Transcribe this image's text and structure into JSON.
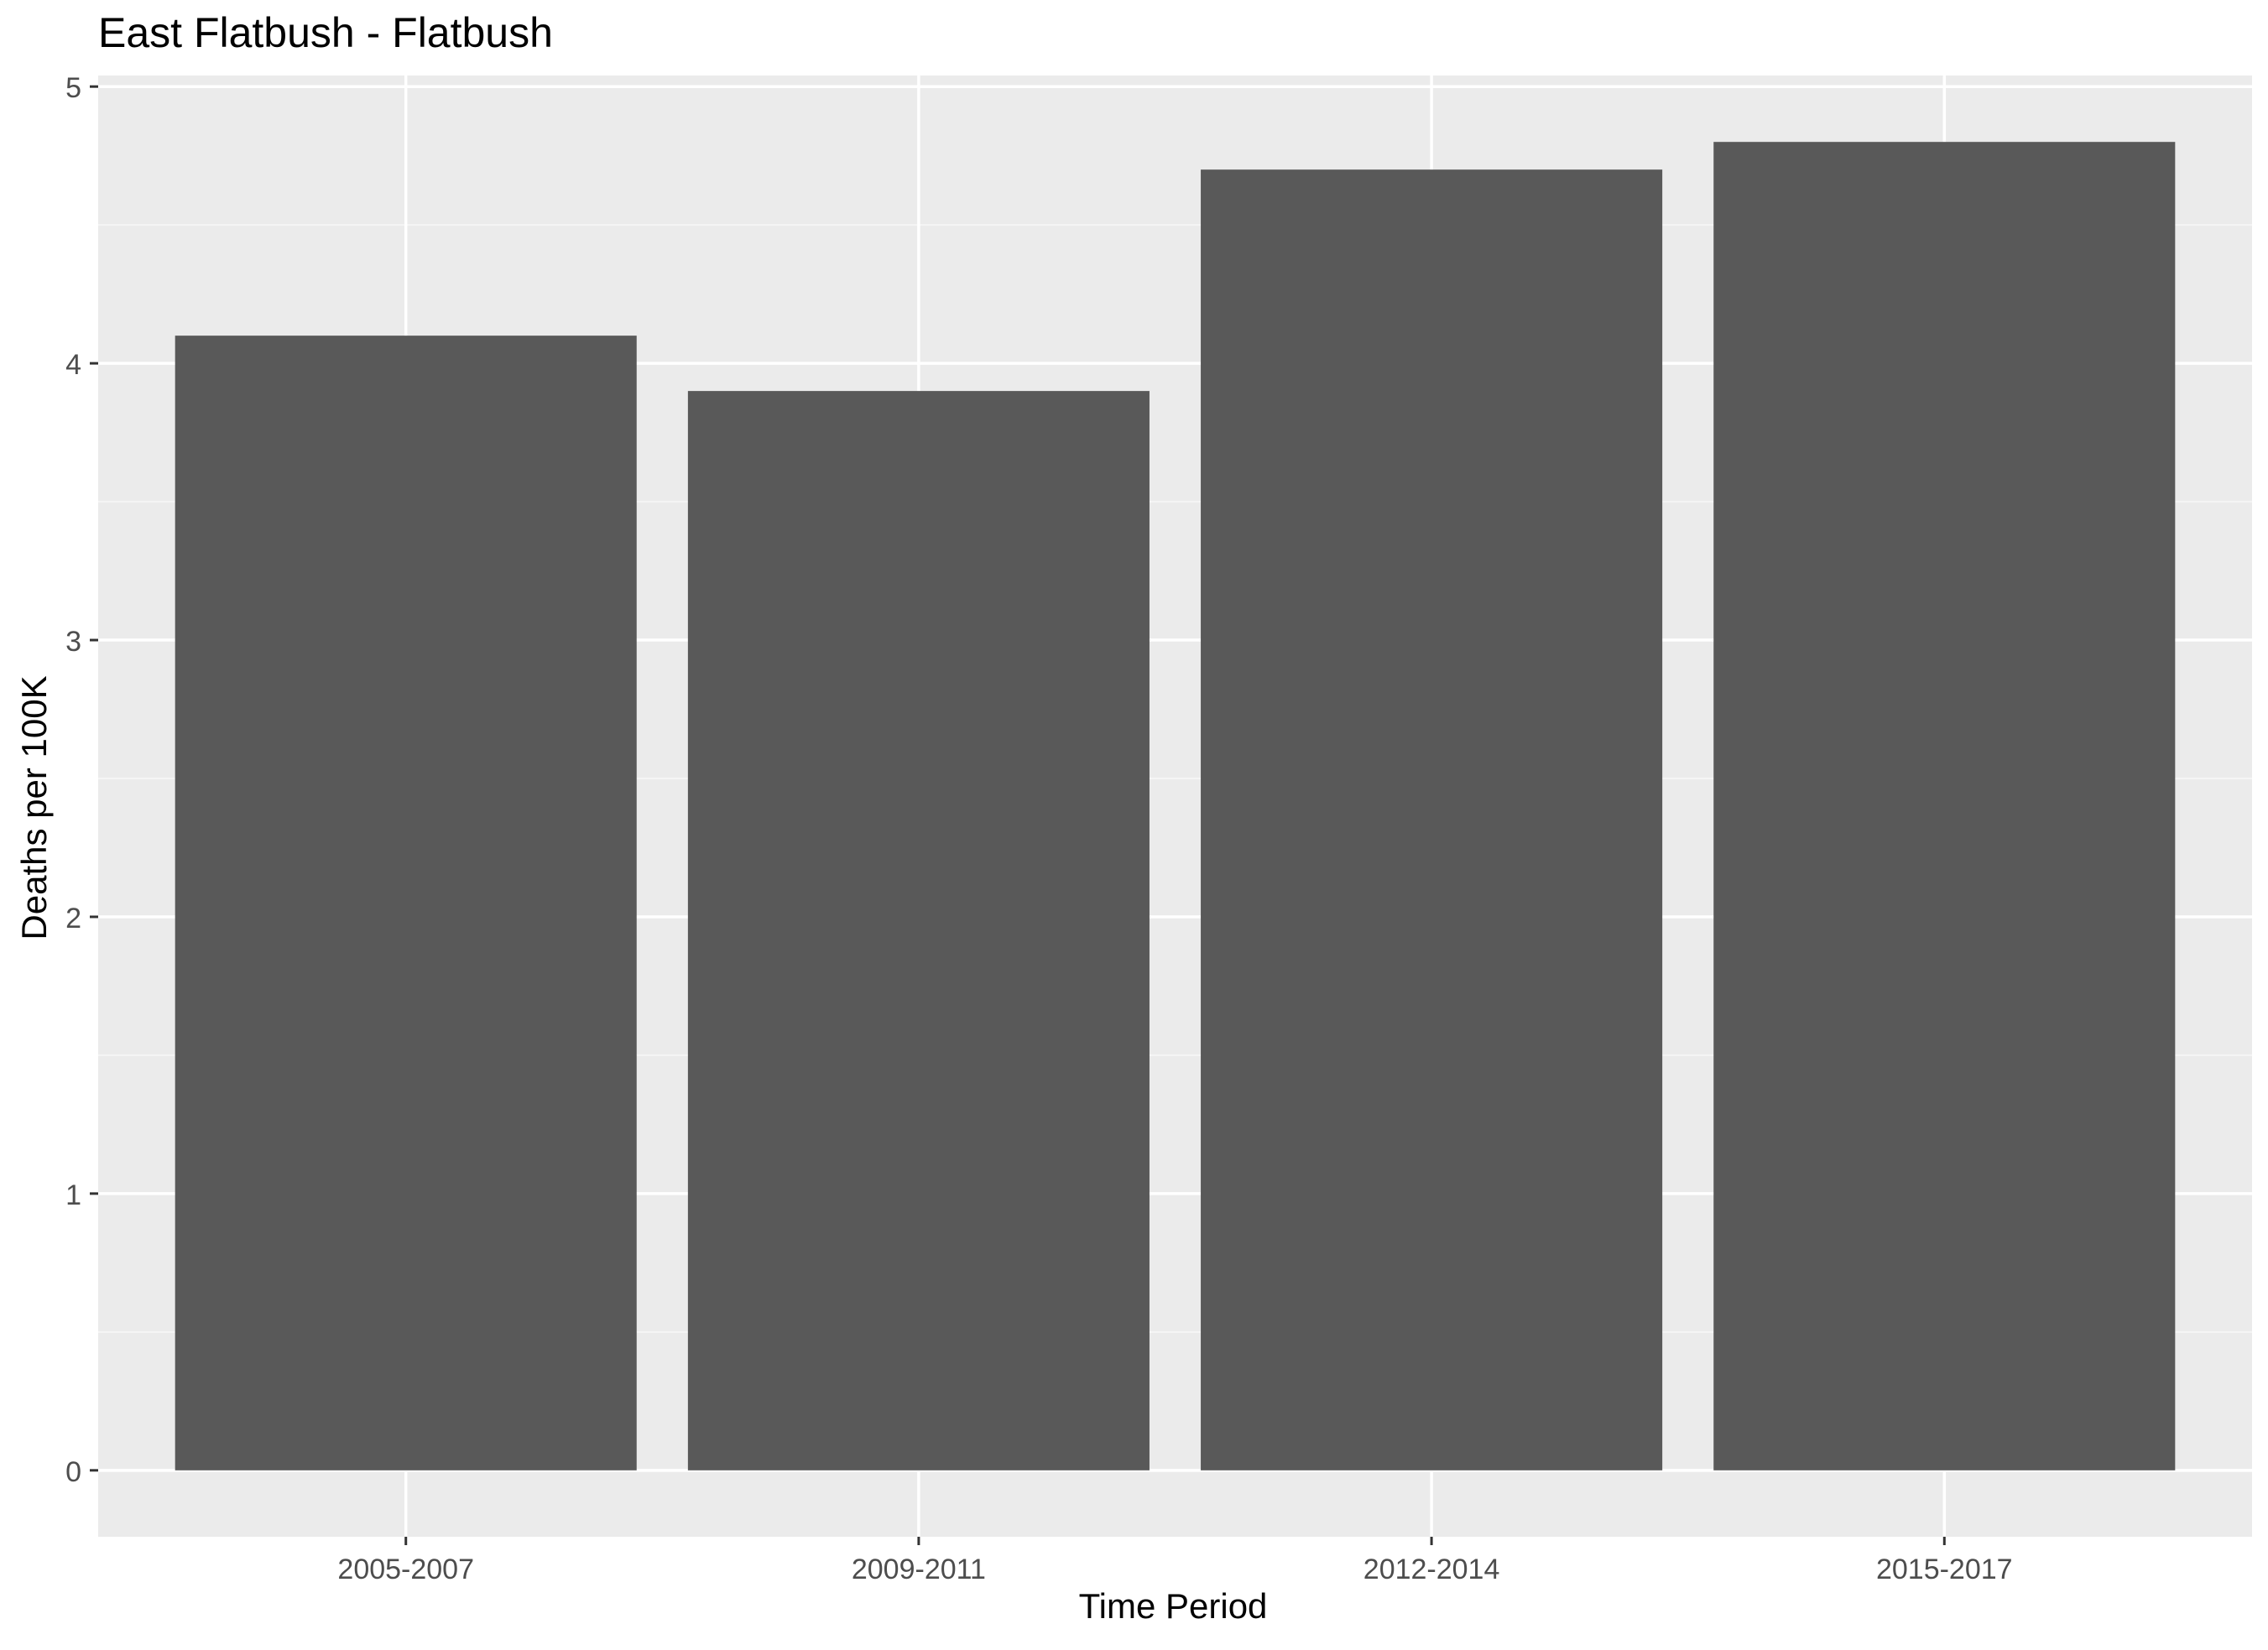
{
  "chart_data": {
    "type": "bar",
    "title": "East Flatbush - Flatbush",
    "xlabel": "Time Period",
    "ylabel": "Deaths per 100K",
    "categories": [
      "2005-2007",
      "2009-2011",
      "2012-2014",
      "2015-2017"
    ],
    "values": [
      4.1,
      3.9,
      4.7,
      4.8
    ],
    "ylim": [
      -0.24,
      5.04
    ],
    "yticks": [
      0,
      1,
      2,
      3,
      4,
      5
    ],
    "grid": true,
    "legend": "none",
    "colors": {
      "bar": "#595959",
      "panel": "#ebebeb",
      "grid_major": "#ffffff",
      "grid_minor": "#f5f5f5",
      "axis_text": "#4d4d4d",
      "title": "#000000",
      "tick": "#333333"
    }
  }
}
